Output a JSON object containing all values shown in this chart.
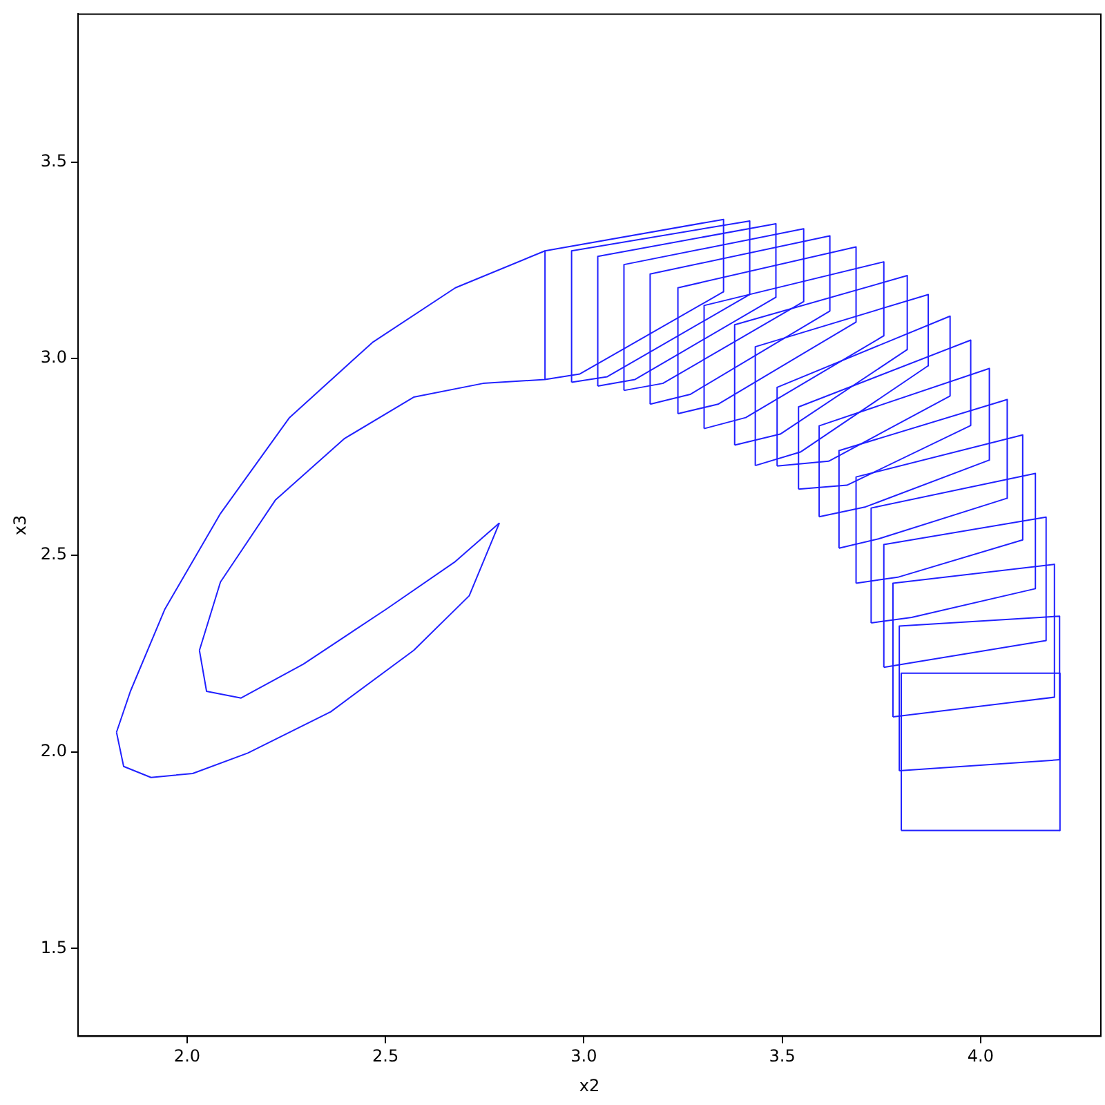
{
  "chart_data": {
    "type": "line",
    "xlabel": "x2",
    "ylabel": "x3",
    "xlim": [
      1.725,
      4.303
    ],
    "ylim": [
      1.277,
      3.876
    ],
    "xticks": [
      {
        "value": 2,
        "label": "2.0"
      },
      2.5,
      {
        "value": 3,
        "label": "3.0"
      },
      3.5,
      {
        "value": 4,
        "label": "4.0"
      }
    ],
    "yticks": [
      1.5,
      {
        "value": 2,
        "label": "2.0"
      },
      2.5,
      {
        "value": 3,
        "label": "3.0"
      },
      3.5
    ],
    "grid": false,
    "legend": false,
    "marker": "none",
    "line_style": "solid",
    "series": [
      {
        "color": "#2020ff",
        "x": [
          3.8,
          3.8,
          4.2,
          4.2
        ],
        "values": [
          1.8,
          2.2,
          2.2,
          1.8
        ]
      },
      {
        "color": "#2020ff",
        "x": [
          3.8,
          4.2
        ],
        "values": [
          1.8,
          1.8
        ]
      },
      {
        "color": "#2020ff",
        "x": [
          3.795,
          3.795,
          4.199,
          4.199
        ],
        "values": [
          1.952,
          2.32,
          2.345,
          1.98
        ]
      },
      {
        "color": "#2020ff",
        "x": [
          3.795,
          4.199
        ],
        "values": [
          1.952,
          1.98
        ]
      },
      {
        "color": "#2020ff",
        "x": [
          3.779,
          3.779,
          4.186,
          4.186
        ],
        "values": [
          2.089,
          2.429,
          2.477,
          2.139
        ]
      },
      {
        "color": "#2020ff",
        "x": [
          3.779,
          4.186
        ],
        "values": [
          2.089,
          2.139
        ]
      },
      {
        "color": "#2020ff",
        "x": [
          3.756,
          3.756,
          4.165,
          4.165
        ],
        "values": [
          2.215,
          2.527,
          2.597,
          2.283
        ]
      },
      {
        "color": "#2020ff",
        "x": [
          3.756,
          4.165
        ],
        "values": [
          2.215,
          2.283
        ]
      },
      {
        "color": "#2020ff",
        "x": [
          3.724,
          3.724,
          4.138,
          4.138
        ],
        "values": [
          2.328,
          2.62,
          2.708,
          2.415
        ]
      },
      {
        "color": "#2020ff",
        "x": [
          3.724,
          3.826,
          4.138
        ],
        "values": [
          2.328,
          2.342,
          2.415
        ]
      },
      {
        "color": "#2020ff",
        "x": [
          3.686,
          3.686,
          4.106,
          4.106
        ],
        "values": [
          2.429,
          2.699,
          2.806,
          2.539
        ]
      },
      {
        "color": "#2020ff",
        "x": [
          3.686,
          3.791,
          4.106
        ],
        "values": [
          2.429,
          2.444,
          2.539
        ]
      },
      {
        "color": "#2020ff",
        "x": [
          3.643,
          3.643,
          4.067,
          4.067
        ],
        "values": [
          2.518,
          2.766,
          2.896,
          2.645
        ]
      },
      {
        "color": "#2020ff",
        "x": [
          3.643,
          3.744,
          4.067
        ],
        "values": [
          2.518,
          2.542,
          2.645
        ]
      },
      {
        "color": "#2020ff",
        "x": [
          3.593,
          3.593,
          4.022,
          4.022
        ],
        "values": [
          2.598,
          2.829,
          2.975,
          2.742
        ]
      },
      {
        "color": "#2020ff",
        "x": [
          3.593,
          3.71,
          4.022
        ],
        "values": [
          2.598,
          2.623,
          2.742
        ]
      },
      {
        "color": "#2020ff",
        "x": [
          3.541,
          3.541,
          3.975,
          3.975
        ],
        "values": [
          2.668,
          2.877,
          3.047,
          2.83
        ]
      },
      {
        "color": "#2020ff",
        "x": [
          3.541,
          3.663,
          3.975
        ],
        "values": [
          2.668,
          2.678,
          2.83
        ]
      },
      {
        "color": "#2020ff",
        "x": [
          3.487,
          3.487,
          3.923,
          3.923
        ],
        "values": [
          2.727,
          2.927,
          3.108,
          2.905
        ]
      },
      {
        "color": "#2020ff",
        "x": [
          3.487,
          3.617,
          3.923
        ],
        "values": [
          2.727,
          2.739,
          2.905
        ]
      },
      {
        "color": "#2020ff",
        "x": [
          3.432,
          3.432,
          3.868,
          3.868
        ],
        "values": [
          2.728,
          3.03,
          3.163,
          2.982
        ]
      },
      {
        "color": "#2020ff",
        "x": [
          3.432,
          3.547,
          3.868
        ],
        "values": [
          2.728,
          2.763,
          2.982
        ]
      },
      {
        "color": "#2020ff",
        "x": [
          3.38,
          3.38,
          3.815,
          3.815
        ],
        "values": [
          2.78,
          3.086,
          3.211,
          3.023
        ]
      },
      {
        "color": "#2020ff",
        "x": [
          3.38,
          3.495,
          3.815
        ],
        "values": [
          2.78,
          2.808,
          3.023
        ]
      },
      {
        "color": "#2020ff",
        "x": [
          3.303,
          3.303,
          3.756,
          3.756
        ],
        "values": [
          2.822,
          3.135,
          3.246,
          3.058
        ]
      },
      {
        "color": "#2020ff",
        "x": [
          3.303,
          3.408,
          3.756
        ],
        "values": [
          2.822,
          2.85,
          3.058
        ]
      },
      {
        "color": "#2020ff",
        "x": [
          3.237,
          3.237,
          3.686,
          3.686
        ],
        "values": [
          2.86,
          3.18,
          3.284,
          3.093
        ]
      },
      {
        "color": "#2020ff",
        "x": [
          3.237,
          3.338,
          3.686
        ],
        "values": [
          2.86,
          2.884,
          3.093
        ]
      },
      {
        "color": "#2020ff",
        "x": [
          3.167,
          3.167,
          3.62,
          3.62
        ],
        "values": [
          2.884,
          3.215,
          3.312,
          3.121
        ]
      },
      {
        "color": "#2020ff",
        "x": [
          3.167,
          3.268,
          3.62
        ],
        "values": [
          2.884,
          2.909,
          3.121
        ]
      },
      {
        "color": "#2020ff",
        "x": [
          3.101,
          3.101,
          3.554,
          3.554
        ],
        "values": [
          2.919,
          3.239,
          3.33,
          3.145
        ]
      },
      {
        "color": "#2020ff",
        "x": [
          3.101,
          3.199,
          3.554
        ],
        "values": [
          2.919,
          2.937,
          3.145
        ]
      },
      {
        "color": "#2020ff",
        "x": [
          3.035,
          3.035,
          3.484,
          3.484
        ],
        "values": [
          2.93,
          3.26,
          3.343,
          3.156
        ]
      },
      {
        "color": "#2020ff",
        "x": [
          3.035,
          3.129,
          3.484
        ],
        "values": [
          2.93,
          2.947,
          3.156
        ]
      },
      {
        "color": "#2020ff",
        "x": [
          2.969,
          2.969,
          3.418,
          3.418
        ],
        "values": [
          2.94,
          3.274,
          3.35,
          3.163
        ]
      },
      {
        "color": "#2020ff",
        "x": [
          2.969,
          3.059,
          3.418
        ],
        "values": [
          2.94,
          2.954,
          3.163
        ]
      },
      {
        "color": "#2020ff",
        "x": [
          2.902,
          2.902,
          3.352,
          3.352
        ],
        "values": [
          2.947,
          3.274,
          3.354,
          3.17
        ]
      },
      {
        "color": "#2020ff",
        "x": [
          1.822,
          1.857,
          1.944,
          2.084,
          2.258,
          2.467,
          2.676,
          2.902
        ],
        "values": [
          2.05,
          2.154,
          2.363,
          2.606,
          2.85,
          3.041,
          3.18,
          3.274
        ]
      },
      {
        "color": "#2020ff",
        "x": [
          1.822,
          1.84,
          1.909,
          2.014,
          2.153,
          2.362,
          2.571,
          2.711,
          2.787
        ],
        "values": [
          2.05,
          1.963,
          1.935,
          1.945,
          1.997,
          2.102,
          2.258,
          2.397,
          2.582
        ]
      },
      {
        "color": "#2020ff",
        "x": [
          2.031,
          2.084,
          2.223,
          2.397,
          2.571,
          2.746,
          2.902,
          2.99,
          3.352
        ],
        "values": [
          2.258,
          2.432,
          2.641,
          2.797,
          2.902,
          2.937,
          2.947,
          2.961,
          3.17
        ]
      },
      {
        "color": "#2020ff",
        "x": [
          2.031,
          2.049,
          2.136,
          2.293,
          2.502,
          2.676,
          2.787
        ],
        "values": [
          2.258,
          2.154,
          2.137,
          2.223,
          2.363,
          2.484,
          2.582
        ]
      }
    ]
  }
}
